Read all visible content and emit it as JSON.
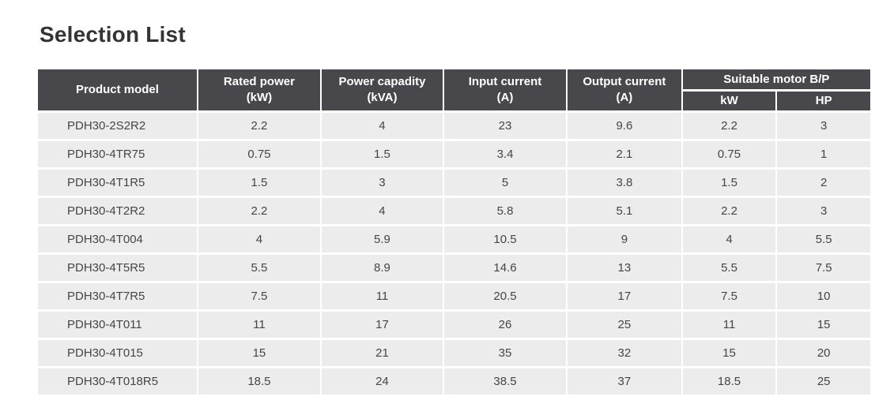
{
  "page": {
    "title": "Selection List"
  },
  "table": {
    "columns": [
      {
        "key": "model",
        "label": "Product model"
      },
      {
        "key": "rated_power",
        "label": "Rated power\n(kW)"
      },
      {
        "key": "power_capacity",
        "label": "Power capadity\n(kVA)"
      },
      {
        "key": "input_current",
        "label": "Input current\n(A)"
      },
      {
        "key": "output_current",
        "label": "Output current\n(A)"
      }
    ],
    "motor_group": {
      "label": "Suitable motor B/P",
      "sub_columns": [
        "kW",
        "HP"
      ]
    },
    "rows": [
      [
        "PDH30-2S2R2",
        "2.2",
        "4",
        "23",
        "9.6",
        "2.2",
        "3"
      ],
      [
        "PDH30-4TR75",
        "0.75",
        "1.5",
        "3.4",
        "2.1",
        "0.75",
        "1"
      ],
      [
        "PDH30-4T1R5",
        "1.5",
        "3",
        "5",
        "3.8",
        "1.5",
        "2"
      ],
      [
        "PDH30-4T2R2",
        "2.2",
        "4",
        "5.8",
        "5.1",
        "2.2",
        "3"
      ],
      [
        "PDH30-4T004",
        "4",
        "5.9",
        "10.5",
        "9",
        "4",
        "5.5"
      ],
      [
        "PDH30-4T5R5",
        "5.5",
        "8.9",
        "14.6",
        "13",
        "5.5",
        "7.5"
      ],
      [
        "PDH30-4T7R5",
        "7.5",
        "11",
        "20.5",
        "17",
        "7.5",
        "10"
      ],
      [
        "PDH30-4T011",
        "11",
        "17",
        "26",
        "25",
        "11",
        "15"
      ],
      [
        "PDH30-4T015",
        "15",
        "21",
        "35",
        "32",
        "15",
        "20"
      ],
      [
        "PDH30-4T018R5",
        "18.5",
        "24",
        "38.5",
        "37",
        "18.5",
        "25"
      ]
    ]
  },
  "colors": {
    "header_bg": "#48484C",
    "header_text": "#FFFFFF",
    "row_bg": "#ECECEC",
    "row_text": "#454548",
    "title_text": "#343437",
    "page_bg": "#FFFFFF"
  }
}
